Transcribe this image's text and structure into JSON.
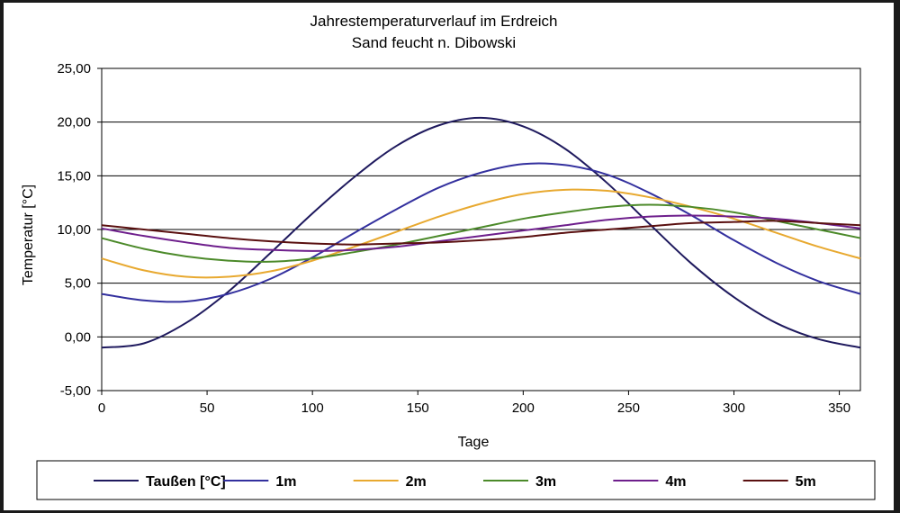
{
  "chart_data": {
    "type": "line",
    "title": "Jahrestemperaturverlauf im Erdreich",
    "subtitle": "Sand feucht n. Dibowski",
    "xlabel": "Tage",
    "ylabel": "Temperatur [°C]",
    "xlim": [
      0,
      360
    ],
    "ylim": [
      -5,
      25
    ],
    "x_ticks": [
      "0",
      "50",
      "100",
      "150",
      "200",
      "250",
      "300",
      "350"
    ],
    "x_tick_values": [
      0,
      50,
      100,
      150,
      200,
      250,
      300,
      350
    ],
    "y_ticks": [
      "-5,00",
      "0,00",
      "5,00",
      "10,00",
      "15,00",
      "20,00",
      "25,00"
    ],
    "y_tick_values": [
      -5,
      0,
      5,
      10,
      15,
      20,
      25
    ],
    "grid": "horizontal",
    "legend_position": "bottom",
    "x": [
      0,
      20,
      40,
      60,
      80,
      100,
      120,
      140,
      160,
      180,
      200,
      220,
      240,
      260,
      280,
      300,
      320,
      340,
      360
    ],
    "series": [
      {
        "name": "Taußen [°C]",
        "color": "#1f1a5e",
        "values": [
          -1.0,
          -0.6,
          1.3,
          4.2,
          7.8,
          11.5,
          14.9,
          17.8,
          19.7,
          20.4,
          19.6,
          17.5,
          14.3,
          10.5,
          6.8,
          3.7,
          1.3,
          -0.2,
          -1.0
        ]
      },
      {
        "name": "1m",
        "color": "#33309e",
        "values": [
          4.0,
          3.4,
          3.3,
          4.0,
          5.4,
          7.4,
          9.7,
          11.9,
          13.9,
          15.3,
          16.1,
          16.0,
          15.1,
          13.4,
          11.3,
          9.0,
          6.9,
          5.2,
          4.0
        ]
      },
      {
        "name": "2m",
        "color": "#e8a930",
        "values": [
          7.3,
          6.2,
          5.6,
          5.6,
          6.1,
          7.1,
          8.4,
          9.8,
          11.2,
          12.4,
          13.3,
          13.7,
          13.6,
          13.0,
          12.1,
          11.0,
          9.7,
          8.4,
          7.3
        ]
      },
      {
        "name": "3m",
        "color": "#4c8a2a",
        "values": [
          9.2,
          8.2,
          7.5,
          7.1,
          7.0,
          7.3,
          7.9,
          8.6,
          9.4,
          10.2,
          11.0,
          11.6,
          12.1,
          12.3,
          12.1,
          11.6,
          10.8,
          10.0,
          9.2
        ]
      },
      {
        "name": "4m",
        "color": "#6e1f8c",
        "values": [
          10.1,
          9.4,
          8.8,
          8.3,
          8.1,
          8.0,
          8.1,
          8.4,
          8.9,
          9.4,
          9.9,
          10.4,
          10.9,
          11.2,
          11.3,
          11.2,
          11.0,
          10.6,
          10.1
        ]
      },
      {
        "name": "5m",
        "color": "#5a1010",
        "values": [
          10.4,
          10.0,
          9.6,
          9.2,
          8.9,
          8.7,
          8.6,
          8.7,
          8.8,
          9.0,
          9.3,
          9.7,
          10.0,
          10.3,
          10.6,
          10.7,
          10.8,
          10.6,
          10.4
        ]
      }
    ]
  }
}
